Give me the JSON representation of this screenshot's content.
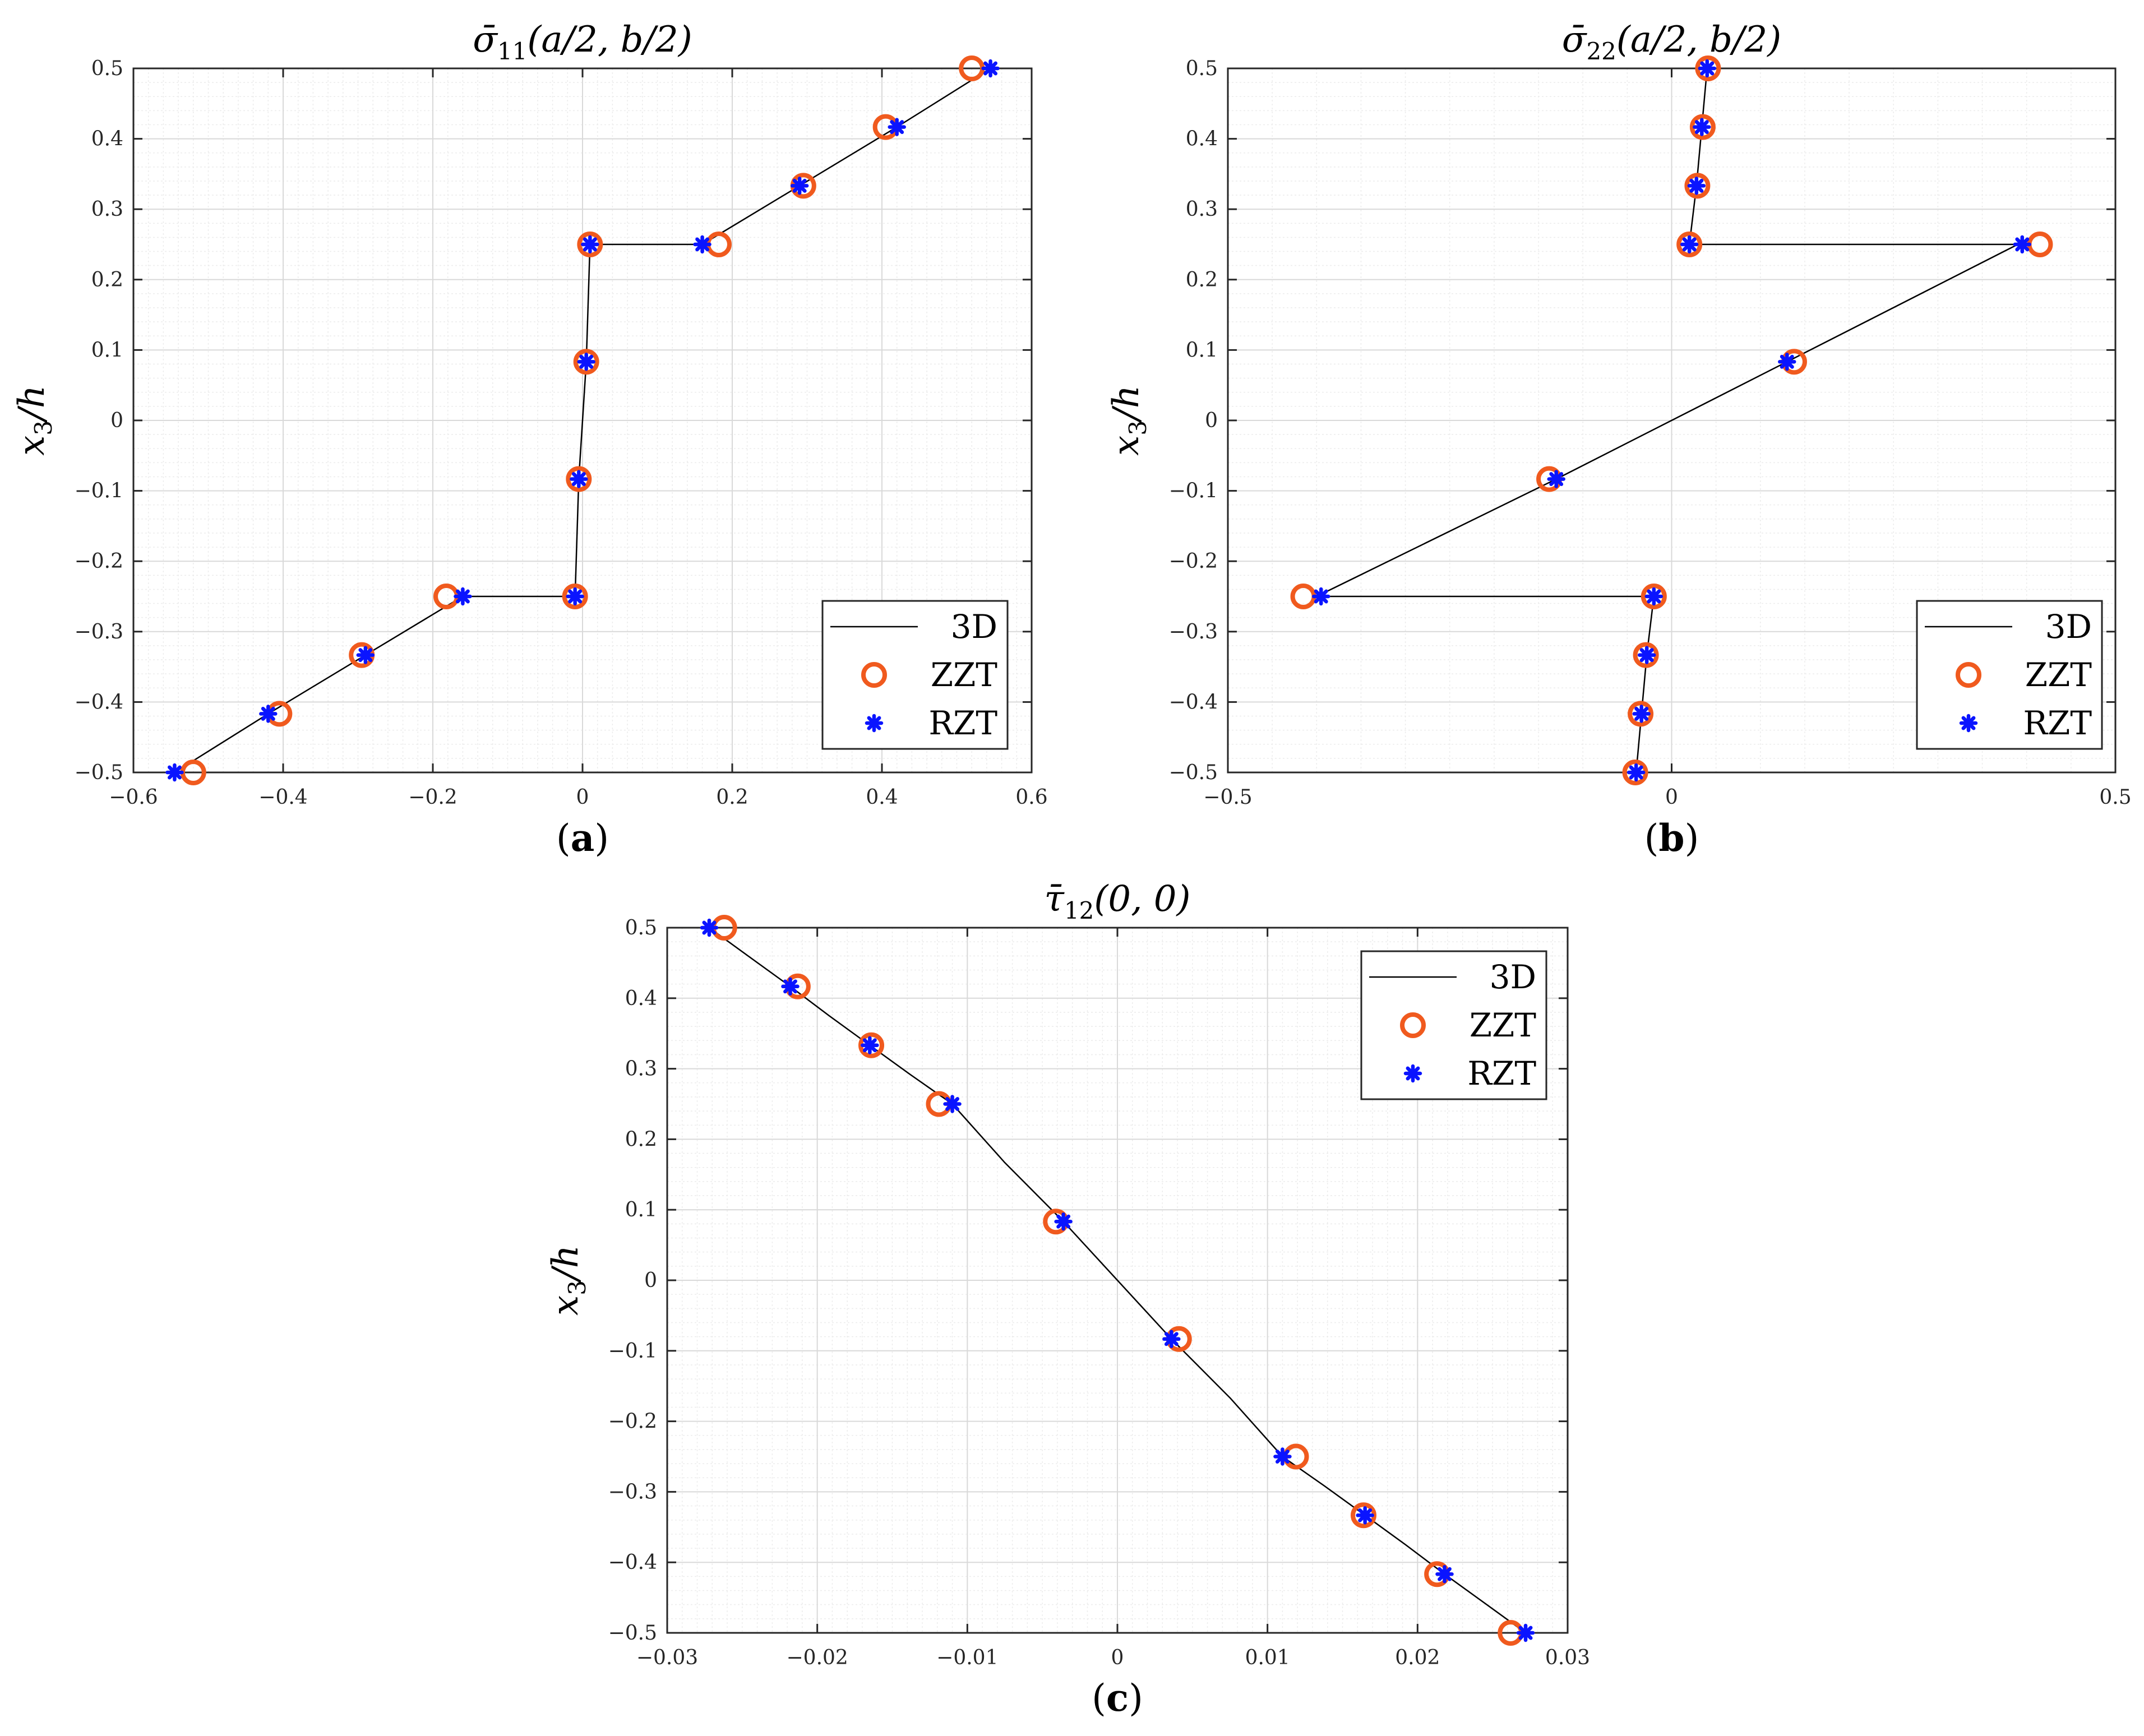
{
  "legend_labels": {
    "line": "3D",
    "circle": "ZZT",
    "star": "RZT"
  },
  "colors": {
    "line": "#000000",
    "circle": "#f05a1e",
    "star": "#0a14ff",
    "grid_major": "#d9d9d9",
    "grid_minor": "#ececec"
  },
  "chart_data": [
    {
      "panel": "(a)",
      "panel_letter": "a",
      "type": "line",
      "title_parts": {
        "symbol": "σ̄",
        "sub": "11",
        "args": "(a/2, b/2)"
      },
      "ylabel_parts": {
        "var": "x",
        "sub": "3",
        "rest": "/h"
      },
      "xlim": [
        -0.6,
        0.6
      ],
      "ylim": [
        -0.5,
        0.5
      ],
      "xticks": [
        -0.6,
        -0.4,
        -0.2,
        0,
        0.2,
        0.4,
        0.6
      ],
      "xtick_labels": [
        "−0.6",
        "−0.4",
        "−0.2",
        "0",
        "0.2",
        "0.4",
        "0.6"
      ],
      "yticks": [
        -0.5,
        -0.4,
        -0.3,
        -0.2,
        -0.1,
        0,
        0.1,
        0.2,
        0.3,
        0.4,
        0.5
      ],
      "ytick_labels": [
        "−0.5",
        "−0.4",
        "−0.3",
        "−0.2",
        "−0.1",
        "0",
        "0.1",
        "0.2",
        "0.3",
        "0.4",
        "0.5"
      ],
      "grid": true,
      "legend_position": "bottom-right",
      "series": [
        {
          "name": "3D",
          "style": "line",
          "x": [
            -0.545,
            -0.42,
            -0.29,
            -0.16,
            -0.16,
            -0.01,
            -0.01,
            -0.005,
            0.0,
            0.005,
            0.01,
            0.01,
            0.16,
            0.16,
            0.29,
            0.42,
            0.545
          ],
          "y": [
            -0.5,
            -0.4167,
            -0.3333,
            -0.25,
            -0.25,
            -0.25,
            -0.25,
            -0.0833,
            0.0,
            0.0833,
            0.25,
            0.25,
            0.25,
            0.25,
            0.3333,
            0.4167,
            0.5
          ]
        },
        {
          "name": "ZZT",
          "style": "circle",
          "x": [
            -0.52,
            -0.405,
            -0.295,
            -0.182,
            -0.01,
            -0.005,
            0.005,
            0.01,
            0.182,
            0.295,
            0.405,
            0.52
          ],
          "y": [
            -0.5,
            -0.4167,
            -0.3333,
            -0.25,
            -0.25,
            -0.0833,
            0.0833,
            0.25,
            0.25,
            0.3333,
            0.4167,
            0.5
          ]
        },
        {
          "name": "RZT",
          "style": "star",
          "x": [
            -0.545,
            -0.42,
            -0.29,
            -0.16,
            -0.01,
            -0.005,
            0.005,
            0.01,
            0.16,
            0.29,
            0.42,
            0.545
          ],
          "y": [
            -0.5,
            -0.4167,
            -0.3333,
            -0.25,
            -0.25,
            -0.0833,
            0.0833,
            0.25,
            0.25,
            0.3333,
            0.4167,
            0.5
          ]
        }
      ]
    },
    {
      "panel": "(b)",
      "panel_letter": "b",
      "type": "line",
      "title_parts": {
        "symbol": "σ̄",
        "sub": "22",
        "args": "(a/2, b/2)"
      },
      "ylabel_parts": {
        "var": "x",
        "sub": "3",
        "rest": "/h"
      },
      "xlim": [
        -0.5,
        0.5
      ],
      "ylim": [
        -0.5,
        0.5
      ],
      "xticks": [
        -0.5,
        0,
        0.5
      ],
      "xtick_labels": [
        "−0.5",
        "0",
        "0.5"
      ],
      "yticks": [
        -0.5,
        -0.4,
        -0.3,
        -0.2,
        -0.1,
        0,
        0.1,
        0.2,
        0.3,
        0.4,
        0.5
      ],
      "ytick_labels": [
        "−0.5",
        "−0.4",
        "−0.3",
        "−0.2",
        "−0.1",
        "0",
        "0.1",
        "0.2",
        "0.3",
        "0.4",
        "0.5"
      ],
      "grid": true,
      "legend_position": "bottom-right",
      "series": [
        {
          "name": "3D",
          "style": "line",
          "x": [
            -0.04,
            -0.034,
            -0.028,
            -0.02,
            -0.02,
            -0.4,
            -0.4,
            -0.13,
            0.0,
            0.13,
            0.39,
            0.39,
            0.02,
            0.02,
            0.028,
            0.034,
            0.04
          ],
          "y": [
            -0.5,
            -0.4167,
            -0.3333,
            -0.25,
            -0.25,
            -0.25,
            -0.25,
            -0.0833,
            0.0,
            0.0833,
            0.25,
            0.25,
            0.25,
            0.25,
            0.3333,
            0.4167,
            0.5
          ]
        },
        {
          "name": "ZZT",
          "style": "circle",
          "x": [
            -0.041,
            -0.035,
            -0.029,
            -0.02,
            -0.415,
            -0.138,
            0.138,
            0.415,
            0.02,
            0.029,
            0.035,
            0.041
          ],
          "y": [
            -0.5,
            -0.4167,
            -0.3333,
            -0.25,
            -0.25,
            -0.0833,
            0.0833,
            0.25,
            0.25,
            0.3333,
            0.4167,
            0.5
          ]
        },
        {
          "name": "RZT",
          "style": "star",
          "x": [
            -0.04,
            -0.034,
            -0.028,
            -0.02,
            -0.395,
            -0.13,
            0.13,
            0.395,
            0.02,
            0.028,
            0.034,
            0.04
          ],
          "y": [
            -0.5,
            -0.4167,
            -0.3333,
            -0.25,
            -0.25,
            -0.0833,
            0.0833,
            0.25,
            0.25,
            0.3333,
            0.4167,
            0.5
          ]
        }
      ]
    },
    {
      "panel": "(c)",
      "panel_letter": "c",
      "type": "line",
      "title_parts": {
        "symbol": "τ̄",
        "sub": "12",
        "args": "(0, 0)"
      },
      "ylabel_parts": {
        "var": "x",
        "sub": "3",
        "rest": "/h"
      },
      "xlim": [
        -0.03,
        0.03
      ],
      "ylim": [
        -0.5,
        0.5
      ],
      "xticks": [
        -0.03,
        -0.02,
        -0.01,
        0,
        0.01,
        0.02,
        0.03
      ],
      "xtick_labels": [
        "−0.03",
        "−0.02",
        "−0.01",
        "0",
        "0.01",
        "0.02",
        "0.03"
      ],
      "yticks": [
        -0.5,
        -0.4,
        -0.3,
        -0.2,
        -0.1,
        0,
        0.1,
        0.2,
        0.3,
        0.4,
        0.5
      ],
      "ytick_labels": [
        "−0.5",
        "−0.4",
        "−0.3",
        "−0.2",
        "−0.1",
        "0",
        "0.1",
        "0.2",
        "0.3",
        "0.4",
        "0.5"
      ],
      "grid": true,
      "legend_position": "top-right",
      "series": [
        {
          "name": "3D",
          "style": "line",
          "x": [
            -0.0272,
            -0.0245,
            -0.0218,
            -0.0192,
            -0.0165,
            -0.0138,
            -0.011,
            -0.0075,
            -0.0036,
            0.0,
            0.0036,
            0.0075,
            0.011,
            0.0138,
            0.0165,
            0.0192,
            0.0218,
            0.0245,
            0.0272
          ],
          "y": [
            0.5,
            0.4583,
            0.4167,
            0.375,
            0.3333,
            0.2917,
            0.25,
            0.1667,
            0.0833,
            0.0,
            -0.0833,
            -0.1667,
            -0.25,
            -0.2917,
            -0.3333,
            -0.375,
            -0.4167,
            -0.4583,
            -0.5
          ]
        },
        {
          "name": "ZZT",
          "style": "circle",
          "x": [
            -0.0262,
            -0.0213,
            -0.0164,
            -0.0119,
            -0.0041,
            0.0041,
            0.0119,
            0.0164,
            0.0213,
            0.0262
          ],
          "y": [
            0.5,
            0.4167,
            0.3333,
            0.25,
            0.0833,
            -0.0833,
            -0.25,
            -0.3333,
            -0.4167,
            -0.5
          ]
        },
        {
          "name": "RZT",
          "style": "star",
          "x": [
            -0.0272,
            -0.0218,
            -0.0165,
            -0.011,
            -0.0036,
            0.0036,
            0.011,
            0.0165,
            0.0218,
            0.0272
          ],
          "y": [
            0.5,
            0.4167,
            0.3333,
            0.25,
            0.0833,
            -0.0833,
            -0.25,
            -0.3333,
            -0.4167,
            -0.5
          ]
        }
      ]
    }
  ]
}
